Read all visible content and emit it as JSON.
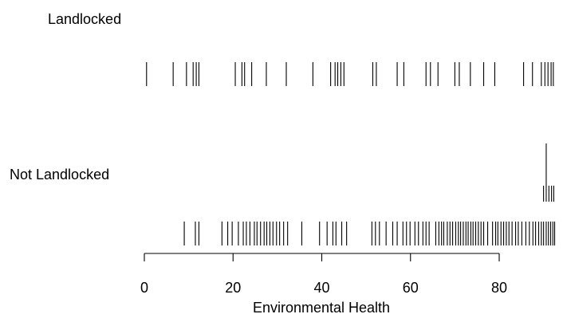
{
  "chart_data": {
    "type": "strip",
    "xlabel": "Environmental Health",
    "xlim": [
      0,
      93
    ],
    "xticks": [
      0,
      20,
      40,
      60,
      80
    ],
    "groups": [
      {
        "name": "Landlocked",
        "values": [
          0.5,
          6.5,
          9.5,
          11.0,
          11.7,
          12.3,
          20.5,
          22.0,
          22.6,
          24.2,
          27.5,
          32.0,
          38.0,
          42.0,
          43.0,
          43.6,
          44.3,
          45.0,
          51.5,
          52.3,
          57.0,
          58.5,
          63.5,
          64.5,
          66.2,
          70.0,
          71.0,
          73.5,
          76.5,
          79.0,
          85.5,
          87.5,
          89.5,
          90.3,
          91.0,
          91.7,
          92.2
        ]
      },
      {
        "name": "Not Landlocked",
        "values": [
          9.0,
          11.5,
          12.3,
          17.5,
          18.8,
          19.8,
          21.2,
          22.3,
          23.0,
          23.8,
          24.8,
          25.4,
          26.2,
          27.0,
          27.6,
          28.3,
          29.0,
          29.8,
          30.5,
          31.4,
          32.3,
          35.5,
          39.5,
          41.2,
          42.5,
          43.2,
          44.5,
          45.6,
          51.3,
          52.1,
          53.0,
          54.5,
          56.0,
          57.0,
          58.3,
          59.1,
          59.9,
          61.0,
          61.8,
          62.8,
          63.5,
          64.2,
          65.7,
          66.4,
          67.0,
          67.5,
          68.3,
          68.9,
          69.5,
          70.2,
          70.8,
          71.3,
          71.9,
          72.5,
          73.0,
          73.6,
          74.1,
          74.7,
          75.3,
          75.9,
          76.5,
          77.4,
          78.5,
          79.2,
          79.7,
          80.4,
          81.0,
          81.6,
          82.2,
          82.9,
          83.7,
          84.3,
          85.1,
          86.0,
          86.8,
          87.6,
          88.2,
          88.9,
          89.5,
          90.0,
          90.6,
          91.1,
          91.6,
          92.1,
          92.5
        ],
        "stacked": [
          {
            "value": 90.0,
            "count": 1
          },
          {
            "value": 90.6,
            "count": 4
          },
          {
            "value": 91.2,
            "count": 1
          },
          {
            "value": 91.8,
            "count": 1
          },
          {
            "value": 92.3,
            "count": 1
          }
        ]
      }
    ]
  }
}
